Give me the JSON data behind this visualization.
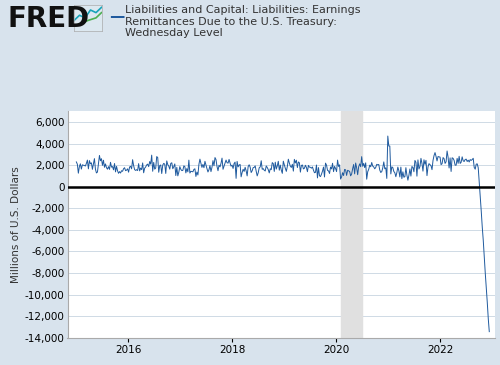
{
  "title_line1": "Liabilities and Capital: Liabilities: Earnings",
  "title_line2": "Remittances Due to the U.S. Treasury:",
  "title_line3": "Wednesday Level",
  "ylabel": "Millions of U.S. Dollars",
  "fred_text": "FRED",
  "line_color": "#1f5a9e",
  "background_color": "#d8e3ed",
  "plot_bg_color": "#ffffff",
  "recession_color": "#e0e0e0",
  "recession_start": 2020.08,
  "recession_end": 2020.5,
  "zero_line_color": "#000000",
  "ylim": [
    -14000,
    7000
  ],
  "yticks": [
    -14000,
    -12000,
    -10000,
    -8000,
    -6000,
    -4000,
    -2000,
    0,
    2000,
    4000,
    6000
  ],
  "xstart": 2014.83,
  "xend": 2023.05,
  "xticks": [
    2016,
    2018,
    2020,
    2022
  ],
  "grid_color": "#c8d4e0",
  "title_fontsize": 8.0,
  "axis_fontsize": 7.5,
  "fred_fontsize": 20,
  "legend_line_color": "#1f5a9e"
}
